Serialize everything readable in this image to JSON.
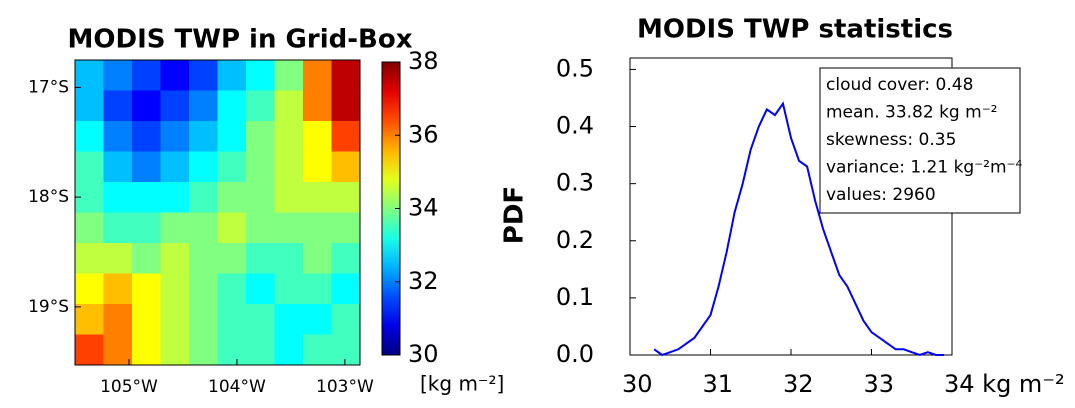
{
  "chart_data": [
    {
      "type": "heatmap",
      "title": "MODIS TWP in Grid-Box",
      "colormap": "jet",
      "xlim": [
        -105.5,
        -102.86
      ],
      "ylim": [
        -19.53,
        -16.75
      ],
      "xticks": [
        {
          "value": -105,
          "label": "105°W"
        },
        {
          "value": -104,
          "label": "104°W"
        },
        {
          "value": -103,
          "label": "103°W"
        }
      ],
      "yticks": [
        {
          "value": -17,
          "label": "17°S"
        },
        {
          "value": -18,
          "label": "18°S"
        },
        {
          "value": -19,
          "label": "19°S"
        }
      ],
      "zlim": [
        30,
        38
      ],
      "zticks": [
        30,
        32,
        34,
        36,
        38
      ],
      "colorbar_label": "[kg m⁻²]",
      "values": [
        [
          32.5,
          32,
          31.5,
          31,
          31.5,
          32.5,
          33,
          34,
          36,
          37.5
        ],
        [
          32.5,
          31.5,
          31,
          31.5,
          32,
          33,
          33.5,
          34.5,
          36,
          37.5
        ],
        [
          33,
          32,
          31.5,
          32,
          32.5,
          33,
          34,
          34.5,
          35,
          36.5
        ],
        [
          33.5,
          32.5,
          32,
          32.5,
          33,
          33.5,
          34,
          34.5,
          35,
          35.5
        ],
        [
          33.5,
          33,
          33,
          33,
          33.5,
          34,
          34,
          34.5,
          34.5,
          34.5
        ],
        [
          34,
          33.5,
          33.5,
          34,
          34,
          34.5,
          34,
          34,
          34,
          34
        ],
        [
          34.5,
          34.5,
          34,
          34.5,
          34,
          34,
          33.5,
          33.5,
          34,
          33.5
        ],
        [
          35,
          35.5,
          35,
          34.5,
          34,
          33.5,
          33,
          33.5,
          33.5,
          33
        ],
        [
          35.5,
          36,
          35,
          34.5,
          34,
          33.5,
          33.5,
          33,
          33,
          33.5
        ],
        [
          36.5,
          36,
          35,
          34.5,
          34,
          33.5,
          33.5,
          33,
          33.5,
          33.5
        ]
      ]
    },
    {
      "type": "line",
      "title": "MODIS TWP statistics",
      "y_label": "PDF",
      "color": "#0000ff",
      "xlim": [
        30,
        34
      ],
      "ylim": [
        0,
        0.52
      ],
      "xticks": [
        30,
        31,
        32,
        33,
        {
          "value": 34,
          "label": "34 kg m⁻²"
        }
      ],
      "yticks": [
        {
          "value": 0,
          "label": "0.0"
        },
        0.1,
        0.2,
        0.3,
        0.4,
        0.5
      ],
      "x": [
        30.3,
        30.4,
        30.5,
        30.6,
        30.7,
        30.8,
        30.9,
        31.0,
        31.1,
        31.2,
        31.3,
        31.4,
        31.5,
        31.6,
        31.7,
        31.8,
        31.9,
        32.0,
        32.1,
        32.2,
        32.3,
        32.4,
        32.5,
        32.6,
        32.7,
        32.8,
        32.9,
        33.0,
        33.1,
        33.2,
        33.3,
        33.4,
        33.5,
        33.6,
        33.7,
        33.8,
        33.9
      ],
      "values": [
        0.01,
        0.0,
        0.005,
        0.01,
        0.02,
        0.03,
        0.05,
        0.07,
        0.12,
        0.18,
        0.25,
        0.3,
        0.36,
        0.4,
        0.43,
        0.42,
        0.44,
        0.38,
        0.34,
        0.33,
        0.27,
        0.22,
        0.18,
        0.14,
        0.12,
        0.09,
        0.06,
        0.04,
        0.03,
        0.02,
        0.01,
        0.01,
        0.005,
        0.0,
        0.005,
        0.0,
        0.0
      ],
      "annotations": [
        "cloud cover: 0.48",
        "mean. 33.82 kg m⁻²",
        "skewness: 0.35",
        "variance: 1.21 kg⁻²m⁻⁴",
        "values: 2960"
      ]
    }
  ]
}
